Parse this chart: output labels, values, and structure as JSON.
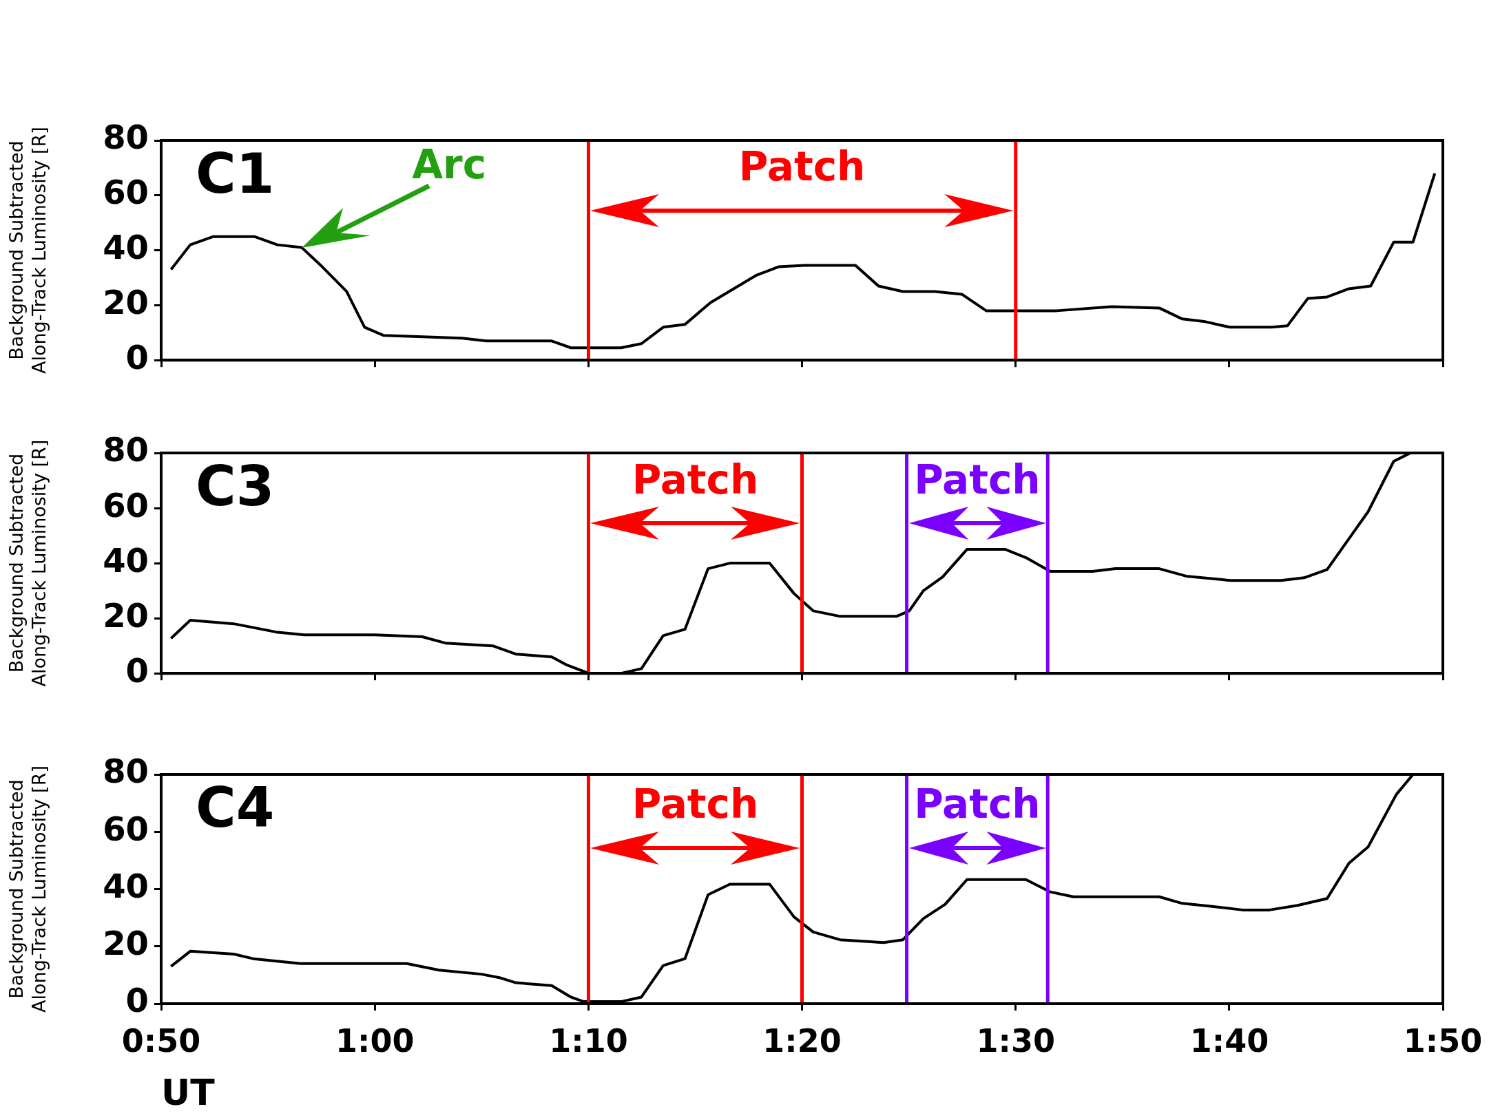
{
  "chart_data": [
    {
      "type": "line",
      "title": "C1",
      "ylabel": "Background Subtracted\nAlong-Track Luminosity [R]",
      "tick_labels": "y",
      "xlim": [
        0.8333,
        1.8333
      ],
      "ylim": [
        0,
        80
      ],
      "yticks": [
        0,
        20,
        40,
        60,
        80
      ],
      "xticks": [
        {
          "value": 0.8333,
          "label": null
        },
        {
          "value": 1,
          "label": null
        },
        {
          "value": 1.1667,
          "label": null
        },
        {
          "value": 1.3333,
          "label": null
        },
        {
          "value": 1.5,
          "label": null
        },
        {
          "value": 1.6667,
          "label": null
        },
        {
          "value": 1.8333,
          "label": null
        }
      ],
      "x": [
        0.841,
        0.856,
        0.874,
        0.906,
        0.924,
        0.943,
        0.959,
        0.978,
        0.992,
        1.007,
        1.068,
        1.087,
        1.138,
        1.153,
        1.192,
        1.208,
        1.225,
        1.242,
        1.262,
        1.28,
        1.298,
        1.315,
        1.335,
        1.375,
        1.393,
        1.412,
        1.437,
        1.458,
        1.477,
        1.532,
        1.575,
        1.612,
        1.63,
        1.648,
        1.667,
        1.7,
        1.712,
        1.728,
        1.743,
        1.76,
        1.777,
        1.795,
        1.81,
        1.827
      ],
      "series": [
        {
          "color": "#000000",
          "values": [
            33,
            42,
            45,
            45,
            42,
            41,
            34,
            25,
            12,
            9,
            8,
            7,
            7,
            4.5,
            4.5,
            6,
            12,
            13,
            21,
            26,
            31,
            34,
            34.5,
            34.5,
            27,
            25,
            25,
            24,
            18,
            18,
            19.5,
            19,
            15,
            14,
            12,
            12,
            12.5,
            22.5,
            23,
            26,
            27,
            43,
            43,
            68
          ]
        }
      ],
      "ref_lines": [
        {
          "axis": "x",
          "value": 1.1667,
          "label": "Patch",
          "color": "#ff0000"
        },
        {
          "axis": "x",
          "value": 1.5,
          "color": "#ff0000"
        }
      ],
      "annotations": [
        "Arc"
      ]
    },
    {
      "type": "line",
      "title": "C3",
      "ylabel": "Background Subtracted\nAlong-Track Luminosity [R]",
      "tick_labels": "y",
      "xlim": [
        0.8333,
        1.8333
      ],
      "ylim": [
        0,
        80
      ],
      "yticks": [
        0,
        20,
        40,
        60,
        80
      ],
      "xticks": [
        {
          "value": 0.8333,
          "label": null
        },
        {
          "value": 1,
          "label": null
        },
        {
          "value": 1.1667,
          "label": null
        },
        {
          "value": 1.3333,
          "label": null
        },
        {
          "value": 1.5,
          "label": null
        },
        {
          "value": 1.6667,
          "label": null
        },
        {
          "value": 1.8333,
          "label": null
        }
      ],
      "x": [
        0.841,
        0.856,
        0.89,
        0.923,
        0.945,
        1.0,
        1.037,
        1.055,
        1.092,
        1.11,
        1.138,
        1.15,
        1.167,
        1.192,
        1.208,
        1.225,
        1.242,
        1.26,
        1.277,
        1.308,
        1.327,
        1.342,
        1.363,
        1.407,
        1.417,
        1.428,
        1.443,
        1.462,
        1.492,
        1.508,
        1.527,
        1.56,
        1.578,
        1.612,
        1.633,
        1.668,
        1.707,
        1.725,
        1.743,
        1.775,
        1.795,
        1.808
      ],
      "series": [
        {
          "color": "#000000",
          "values": [
            12.7,
            19.3,
            18,
            15,
            14,
            14,
            13.3,
            11,
            10,
            7,
            6,
            3,
            0,
            0,
            1.7,
            13.7,
            16,
            38,
            40,
            40,
            29,
            22.7,
            20.7,
            20.7,
            22.7,
            30,
            35,
            45,
            45,
            42,
            37,
            37,
            38,
            38,
            35.3,
            33.7,
            33.7,
            34.7,
            37.7,
            58.7,
            77,
            80
          ]
        }
      ],
      "ref_lines": [
        {
          "axis": "x",
          "value": 1.1667,
          "label": "Patch",
          "color": "#ff0000"
        },
        {
          "axis": "x",
          "value": 1.3333,
          "color": "#ff0000"
        },
        {
          "axis": "x",
          "value": 1.415,
          "label": "Patch",
          "color": "#7a00ff"
        },
        {
          "axis": "x",
          "value": 1.525,
          "color": "#7a00ff"
        }
      ]
    },
    {
      "type": "line",
      "title": "C4",
      "ylabel": "Background Subtracted\nAlong-Track Luminosity [R]",
      "xlabel": "UT",
      "xlim": [
        0.8333,
        1.8333
      ],
      "ylim": [
        0,
        80
      ],
      "yticks": [
        0,
        20,
        40,
        60,
        80
      ],
      "xticks": [
        {
          "value": 0.8333,
          "label": "0:50"
        },
        {
          "value": 1,
          "label": "1:00"
        },
        {
          "value": 1.1667,
          "label": "1:10"
        },
        {
          "value": 1.3333,
          "label": "1:20"
        },
        {
          "value": 1.5,
          "label": "1:30"
        },
        {
          "value": 1.6667,
          "label": "1:40"
        },
        {
          "value": 1.8333,
          "label": "1:50"
        }
      ],
      "x": [
        0.841,
        0.856,
        0.89,
        0.905,
        0.942,
        1.025,
        1.05,
        1.083,
        1.098,
        1.11,
        1.138,
        1.153,
        1.163,
        1.192,
        1.208,
        1.225,
        1.242,
        1.26,
        1.277,
        1.308,
        1.327,
        1.342,
        1.363,
        1.397,
        1.412,
        1.428,
        1.445,
        1.462,
        1.508,
        1.527,
        1.545,
        1.612,
        1.63,
        1.652,
        1.677,
        1.698,
        1.72,
        1.743,
        1.76,
        1.775,
        1.797,
        1.81
      ],
      "series": [
        {
          "color": "#000000",
          "values": [
            13,
            18.3,
            17.3,
            15.7,
            14,
            14,
            11.7,
            10.3,
            9,
            7.3,
            6.3,
            2.3,
            0.7,
            0.7,
            2.3,
            13.3,
            15.7,
            38,
            41.7,
            41.7,
            30.3,
            25,
            22.3,
            21.3,
            22.3,
            29.7,
            34.7,
            43.3,
            43.3,
            39,
            37.3,
            37.3,
            35,
            34,
            32.7,
            32.7,
            34.3,
            36.7,
            49,
            54.7,
            73,
            80
          ]
        }
      ],
      "ref_lines": [
        {
          "axis": "x",
          "value": 1.1667,
          "label": "Patch",
          "color": "#ff0000"
        },
        {
          "axis": "x",
          "value": 1.3333,
          "color": "#ff0000"
        },
        {
          "axis": "x",
          "value": 1.415,
          "label": "Patch",
          "color": "#7a00ff"
        },
        {
          "axis": "x",
          "value": 1.525,
          "color": "#7a00ff"
        }
      ]
    }
  ]
}
